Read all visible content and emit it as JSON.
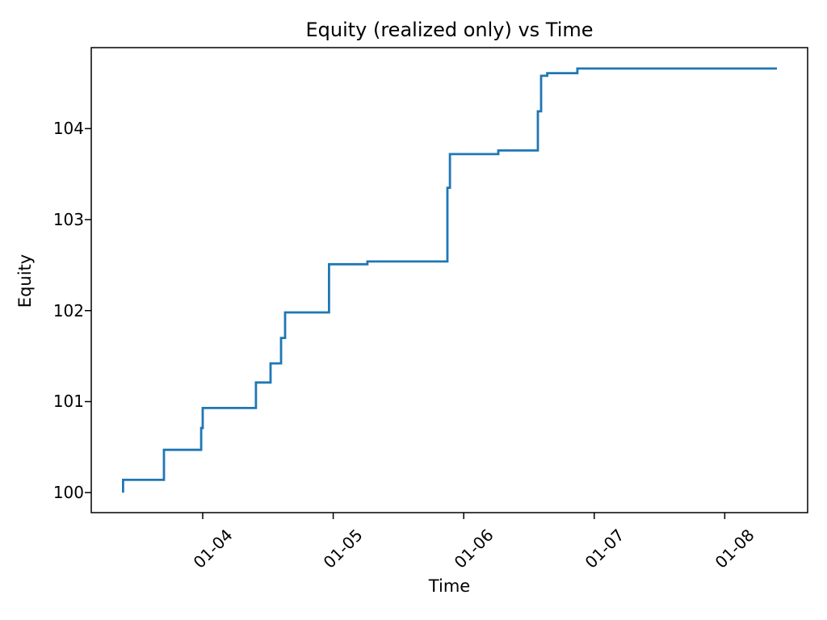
{
  "chart_data": {
    "type": "line",
    "style": "step-post",
    "title": "Equity (realized only) vs Time",
    "xlabel": "Time",
    "ylabel": "Equity",
    "line_color": "#1f77b4",
    "axis_color": "#000000",
    "background": "#ffffff",
    "grid": false,
    "legend": "none",
    "x_unit": "date (MM-DD), x values are fractional days of January",
    "xlim": [
      3.146,
      8.635
    ],
    "ylim": [
      99.78,
      104.89
    ],
    "x_ticks": [
      {
        "t": 4,
        "label": "01-04"
      },
      {
        "t": 5,
        "label": "01-05"
      },
      {
        "t": 6,
        "label": "01-06"
      },
      {
        "t": 7,
        "label": "01-07"
      },
      {
        "t": 8,
        "label": "01-08"
      }
    ],
    "y_ticks": [
      {
        "v": 100,
        "label": "100"
      },
      {
        "v": 101,
        "label": "101"
      },
      {
        "v": 102,
        "label": "102"
      },
      {
        "v": 103,
        "label": "103"
      },
      {
        "v": 104,
        "label": "104"
      }
    ],
    "points": [
      [
        3.39,
        100.0
      ],
      [
        3.39,
        100.14
      ],
      [
        3.703,
        100.14
      ],
      [
        3.703,
        100.47
      ],
      [
        3.988,
        100.47
      ],
      [
        3.988,
        100.71
      ],
      [
        4.0,
        100.71
      ],
      [
        4.0,
        100.93
      ],
      [
        4.408,
        100.93
      ],
      [
        4.408,
        101.21
      ],
      [
        4.52,
        101.21
      ],
      [
        4.52,
        101.42
      ],
      [
        4.6,
        101.42
      ],
      [
        4.6,
        101.7
      ],
      [
        4.631,
        101.7
      ],
      [
        4.631,
        101.98
      ],
      [
        4.968,
        101.98
      ],
      [
        4.968,
        102.51
      ],
      [
        5.262,
        102.51
      ],
      [
        5.262,
        102.54
      ],
      [
        5.875,
        102.54
      ],
      [
        5.875,
        103.35
      ],
      [
        5.894,
        103.35
      ],
      [
        5.894,
        103.72
      ],
      [
        6.265,
        103.72
      ],
      [
        6.265,
        103.76
      ],
      [
        6.568,
        103.76
      ],
      [
        6.568,
        104.19
      ],
      [
        6.593,
        104.19
      ],
      [
        6.593,
        104.58
      ],
      [
        6.64,
        104.58
      ],
      [
        6.64,
        104.61
      ],
      [
        6.871,
        104.61
      ],
      [
        6.871,
        104.66
      ],
      [
        8.4,
        104.66
      ]
    ]
  }
}
